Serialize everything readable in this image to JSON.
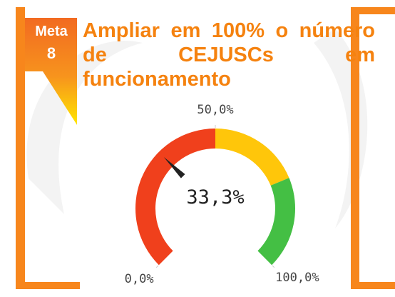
{
  "badge": [
    "Meta",
    "8"
  ],
  "chart_data": {
    "type": "gauge",
    "title": "Ampliar em 100% o número de CEJUSCs em funcionamento",
    "value": 33.3,
    "value_label": "33,3%",
    "range": [
      0,
      100
    ],
    "ticks": [
      {
        "value": 0,
        "label": "0,0%"
      },
      {
        "value": 50,
        "label": "50,0%"
      },
      {
        "value": 100,
        "label": "100,0%"
      }
    ],
    "bands": [
      {
        "from": 0,
        "to": 50,
        "color": "#f0401c"
      },
      {
        "from": 50,
        "to": 75,
        "color": "#ffc60a"
      },
      {
        "from": 75,
        "to": 100,
        "color": "#44bf44"
      }
    ],
    "needle_color": "#222222"
  }
}
